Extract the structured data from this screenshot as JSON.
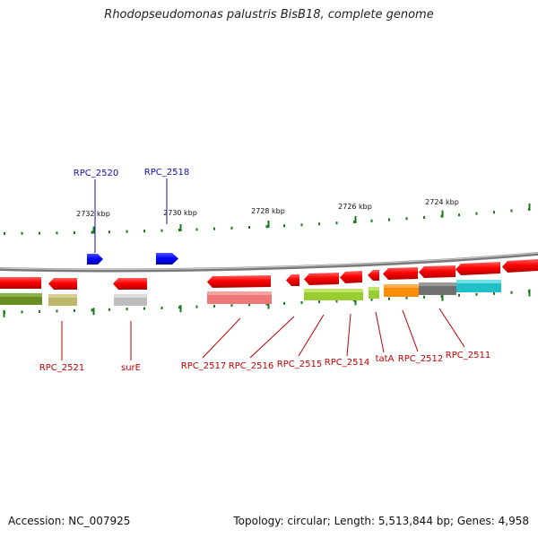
{
  "title": "Rhodopseudomonas palustris BisB18, complete genome",
  "footer": {
    "accession": "Accession: NC_007925",
    "summary": "Topology: circular; Length: 5,513,844 bp; Genes: 4,958"
  },
  "ruler_labels": [
    "2732 kbp",
    "2730 kbp",
    "2728 kbp",
    "2726 kbp",
    "2724 kbp"
  ],
  "top_labels": [
    "RPC_2520",
    "RPC_2518"
  ],
  "bottom_labels": [
    "RPC_2521",
    "surE",
    "RPC_2517",
    "RPC_2516",
    "RPC_2515",
    "RPC_2514",
    "tatA",
    "RPC_2512",
    "RPC_2511"
  ],
  "colors": {
    "forward_gene": "#1010e0",
    "reverse_gene": "#e00000",
    "backbone": "#888888",
    "ticks": "#1a7a1a",
    "top_label": "#1010b0",
    "bottom_label": "#c00000"
  }
}
